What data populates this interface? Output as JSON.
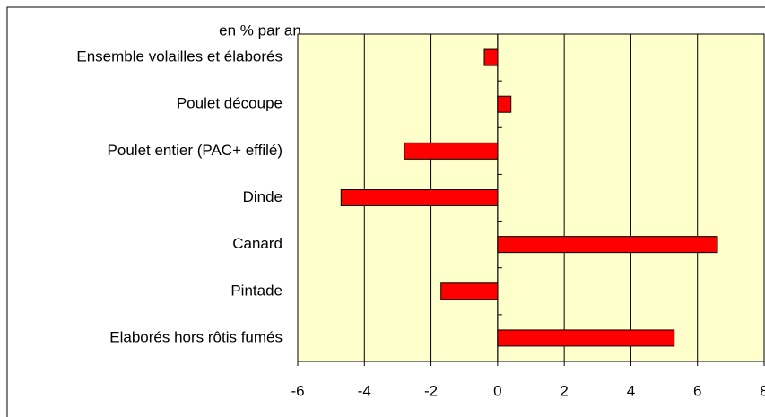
{
  "chart_data": {
    "type": "bar",
    "orientation": "horizontal",
    "title": "en % par an",
    "categories": [
      "Ensemble volailles et élaborés",
      "Poulet découpe",
      "Poulet entier (PAC+ effilé)",
      "Dinde",
      "Canard",
      "Pintade",
      "Elaborés hors rôtis fumés"
    ],
    "values": [
      -0.4,
      0.4,
      -2.8,
      -4.7,
      6.6,
      -1.7,
      5.3
    ],
    "color": "#ff0000",
    "xlim": [
      -6,
      8
    ],
    "xticks": [
      -6,
      -4,
      -2,
      0,
      2,
      4,
      6,
      8
    ],
    "grid": true
  }
}
